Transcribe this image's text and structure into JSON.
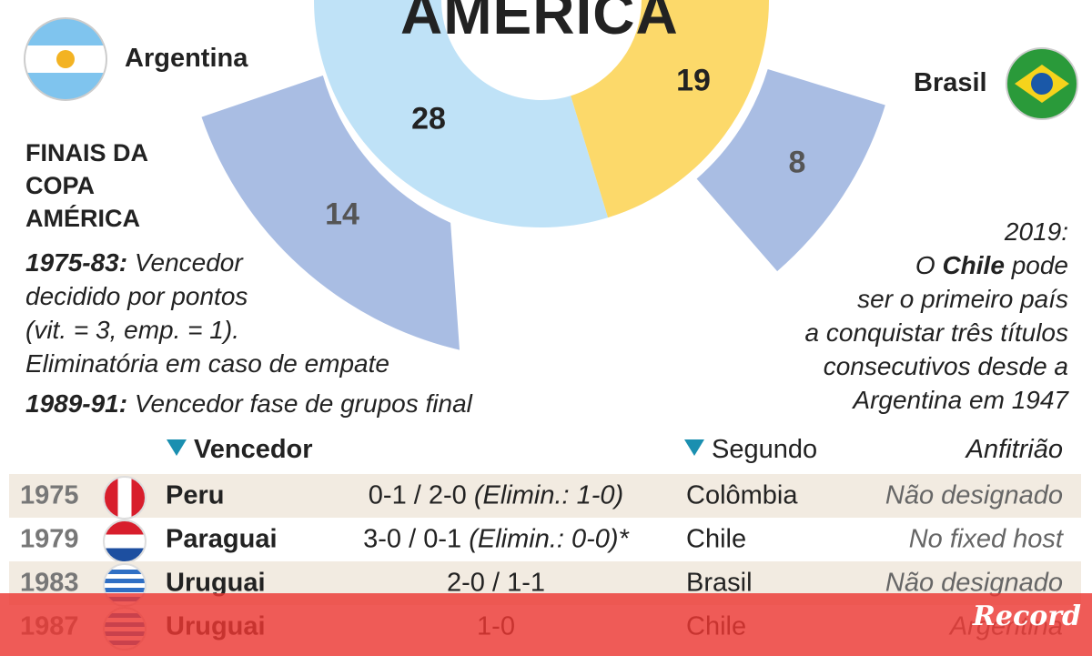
{
  "title": "AMÉRICA",
  "countries": [
    {
      "name": "Argentina",
      "titles": 28,
      "runner_up": 14
    },
    {
      "name": "Brasil",
      "titles": 19,
      "runner_up": 8
    }
  ],
  "heading": [
    "FINAIS DA",
    "COPA",
    "AMÉRICA"
  ],
  "notes": [
    {
      "label": "1975-83:",
      "lines": [
        "Vencedor",
        "decidido por pontos",
        "(vit. = 3, emp. = 1).",
        "Eliminatória em caso de empate"
      ]
    },
    {
      "label": "1989-91:",
      "lines": [
        "Vencedor fase de grupos final"
      ]
    }
  ],
  "side_note": {
    "year": "2019:",
    "first_line": [
      "O",
      "Chile",
      "pode"
    ],
    "lines": [
      "ser o primeiro país",
      "a conquistar três títulos",
      "consecutivos desde a",
      "Argentina em 1947"
    ]
  },
  "table": {
    "headers": [
      "Vencedor",
      "Segundo",
      "Anfitrião"
    ],
    "rows": [
      {
        "year": "1975",
        "winner": "Peru",
        "score": "0-1 / 2-0",
        "score_note": "(Elimin.: 1-0)",
        "second": "Colômbia",
        "host": "Não designado"
      },
      {
        "year": "1979",
        "winner": "Paraguai",
        "score": "3-0 / 0-1",
        "score_note": "(Elimin.: 0-0)*",
        "second": "Chile",
        "host": "No fixed host"
      },
      {
        "year": "1983",
        "winner": "Uruguai",
        "score": "2-0 / 1-1",
        "second": "Brasil",
        "host": "Não designado"
      },
      {
        "year": "1987",
        "winner": "Uruguai",
        "score": "1-0",
        "second": "Chile",
        "host": "Argentina"
      }
    ]
  },
  "logo": "Record"
}
